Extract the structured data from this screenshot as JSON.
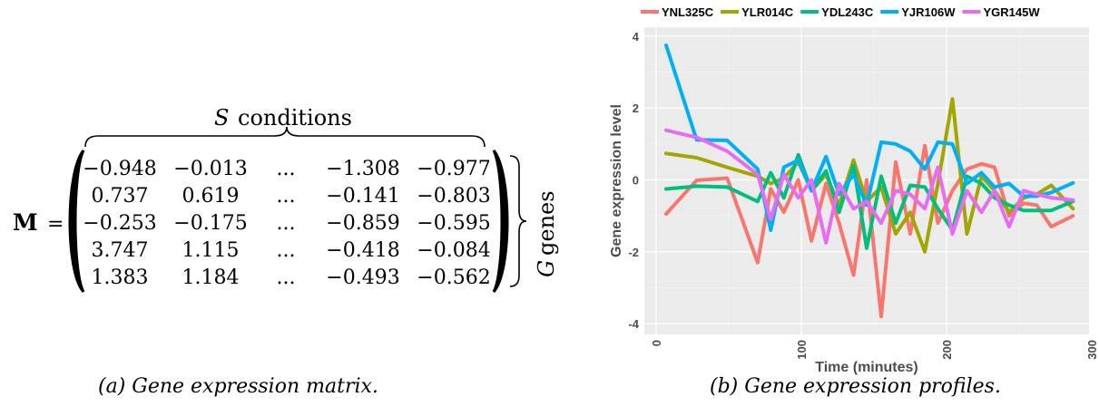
{
  "panel_a": {
    "matrix_symbol": "M",
    "equals": "=",
    "top_brace_label_var": "S",
    "top_brace_label_text": "conditions",
    "side_brace_label_var": "G",
    "side_brace_label_text": "genes",
    "ellipsis": "...",
    "rows": [
      [
        "−0.948",
        "−0.013",
        "−1.308",
        "−0.977"
      ],
      [
        "0.737",
        "0.619",
        "−0.141",
        "−0.803"
      ],
      [
        "−0.253",
        "−0.175",
        "−0.859",
        "−0.595"
      ],
      [
        "3.747",
        "1.115",
        "−0.418",
        "−0.084"
      ],
      [
        "1.383",
        "1.184",
        "−0.493",
        "−0.562"
      ]
    ],
    "caption": "(a) Gene expression matrix."
  },
  "panel_b": {
    "caption": "(b) Gene expression profiles."
  },
  "chart_data": {
    "type": "line",
    "xlabel": "Time (minutes)",
    "ylabel": "Gene expression level",
    "xlim": [
      -8,
      298
    ],
    "ylim": [
      -4.3,
      4.25
    ],
    "x_ticks": [
      0,
      100,
      200,
      300
    ],
    "y_ticks": [
      -4,
      -2,
      0,
      2,
      4
    ],
    "grid": true,
    "background": "#ebebeb",
    "legend_position": "top",
    "x": [
      7,
      28,
      49,
      70,
      79,
      88,
      98,
      107,
      117,
      126,
      136,
      145,
      155,
      165,
      175,
      185,
      194,
      204,
      214,
      224,
      233,
      243,
      253,
      262,
      272,
      287
    ],
    "series": [
      {
        "name": "YNL325C",
        "color": "#F8766D",
        "values": [
          -0.948,
          -0.013,
          0.05,
          -2.3,
          -0.25,
          -0.9,
          0.0,
          -1.7,
          -0.1,
          -1.2,
          -2.65,
          0.0,
          -3.8,
          0.5,
          -1.5,
          0.95,
          -1.2,
          -0.3,
          0.3,
          0.45,
          0.35,
          -1.0,
          -0.65,
          -0.7,
          -1.3,
          -1.0
        ]
      },
      {
        "name": "YLR014C",
        "color": "#A3A500",
        "values": [
          0.737,
          0.619,
          0.35,
          0.1,
          -0.1,
          0.05,
          0.5,
          -0.3,
          0.15,
          -0.7,
          0.55,
          -0.6,
          -0.2,
          -1.5,
          -0.9,
          -2.0,
          -0.1,
          2.25,
          -1.5,
          0.1,
          -0.3,
          -0.9,
          -0.5,
          -0.4,
          -0.15,
          -0.803
        ]
      },
      {
        "name": "YDL243C",
        "color": "#00BF7D",
        "values": [
          -0.253,
          -0.175,
          -0.2,
          -0.6,
          0.2,
          -0.5,
          0.7,
          -0.3,
          0.25,
          -0.9,
          0.4,
          -1.9,
          0.1,
          -1.2,
          -0.15,
          -0.2,
          -0.8,
          -1.4,
          0.1,
          -0.1,
          -0.5,
          -0.7,
          -0.85,
          -0.85,
          -0.85,
          -0.595
        ]
      },
      {
        "name": "YJR106W",
        "color": "#00B0F6",
        "values": [
          3.747,
          1.115,
          1.1,
          0.3,
          -1.4,
          0.35,
          0.55,
          -0.3,
          0.65,
          -0.4,
          0.15,
          -0.7,
          1.05,
          1.0,
          0.8,
          0.3,
          1.05,
          1.0,
          -0.1,
          0.2,
          -0.2,
          -0.1,
          -0.45,
          -0.45,
          -0.35,
          -0.084
        ]
      },
      {
        "name": "YGR145W",
        "color": "#E76BF3",
        "values": [
          1.383,
          1.184,
          0.8,
          0.15,
          -1.1,
          0.15,
          -0.5,
          0.0,
          -1.75,
          -0.1,
          -0.8,
          -0.6,
          -1.2,
          -0.3,
          -0.4,
          -0.8,
          0.35,
          -1.5,
          -0.3,
          -0.9,
          -0.3,
          -1.3,
          -0.3,
          -0.4,
          -0.5,
          -0.562
        ]
      }
    ]
  }
}
